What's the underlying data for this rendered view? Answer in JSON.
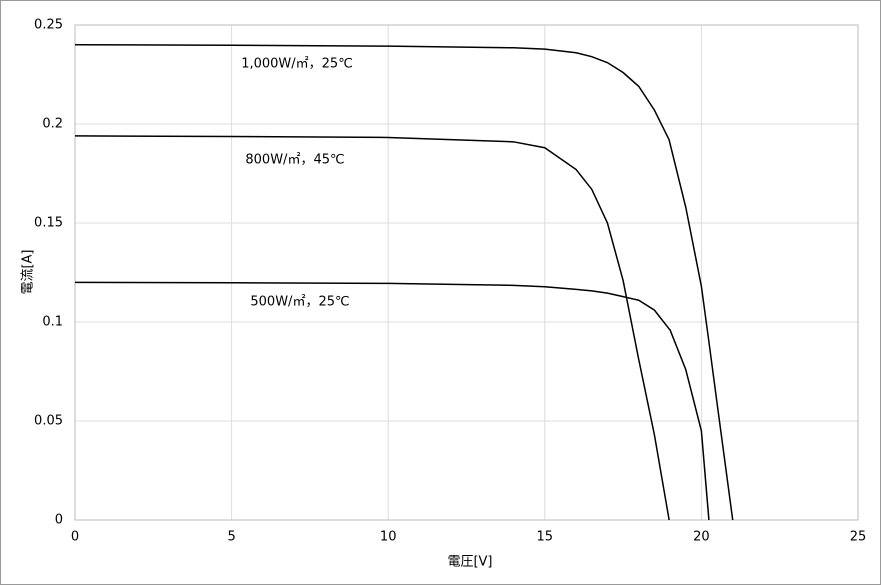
{
  "chart_data": {
    "type": "line",
    "x_label": "電圧[V]",
    "y_label": "電流[A]",
    "x": [
      0,
      5,
      10,
      14,
      15,
      16,
      16.5,
      17,
      17.5,
      18,
      18.5,
      18.97,
      19,
      19.5,
      20,
      20.24,
      20.5,
      21
    ],
    "series": [
      {
        "name": "1,000W/㎡，25℃",
        "color": "#000000",
        "values": [
          0.24,
          0.2398,
          0.2393,
          0.2385,
          0.2378,
          0.236,
          0.234,
          0.231,
          0.226,
          0.219,
          0.207,
          0.192,
          0.19,
          0.158,
          0.118,
          0.09,
          0.059,
          0
        ]
      },
      {
        "name": "800W/㎡，45℃",
        "color": "#000000",
        "values": [
          0.194,
          0.1937,
          0.1932,
          0.191,
          0.188,
          0.177,
          0.167,
          0.15,
          0.121,
          0.081,
          0.043,
          0,
          null,
          null,
          null,
          null,
          null,
          null
        ]
      },
      {
        "name": "500W/㎡，25℃",
        "color": "#000000",
        "values": [
          0.12,
          0.1198,
          0.1195,
          0.1185,
          0.1178,
          0.1165,
          0.1157,
          0.1146,
          0.1128,
          0.111,
          0.106,
          0.0965,
          0.096,
          0.076,
          0.045,
          0,
          null,
          null
        ]
      }
    ],
    "xlim": [
      0,
      25
    ],
    "xticks": [
      0,
      5,
      10,
      15,
      20,
      25
    ],
    "ylim": [
      0,
      0.25
    ],
    "yticks": [
      0,
      0.05,
      0.1,
      0.15,
      0.2,
      0.25
    ],
    "grid": true
  }
}
